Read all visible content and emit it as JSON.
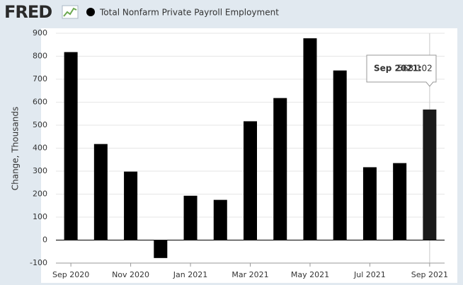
{
  "header": {
    "logo": "FRED"
  },
  "chart_data": {
    "type": "bar",
    "categories": [
      "Sep 2020",
      null,
      "Nov 2020",
      null,
      "Jan 2021",
      null,
      "Mar 2021",
      null,
      "May 2021",
      null,
      "Jul 2021",
      null,
      "Sep 2021"
    ],
    "series": [
      {
        "name": "Total Nonfarm Private Payroll Employment",
        "color": "#000000",
        "values": [
          818,
          418,
          298,
          -78,
          193,
          175,
          517,
          618,
          878,
          738,
          317,
          335,
          568.102
        ]
      }
    ],
    "y_label": "Change, Thousands",
    "ylim": [
      -100,
      900
    ],
    "yticks": [
      -100,
      0,
      100,
      200,
      300,
      400,
      500,
      600,
      700,
      800,
      900
    ],
    "grid": true,
    "tooltip": {
      "label": "Sep 2021:",
      "index": 12
    }
  }
}
